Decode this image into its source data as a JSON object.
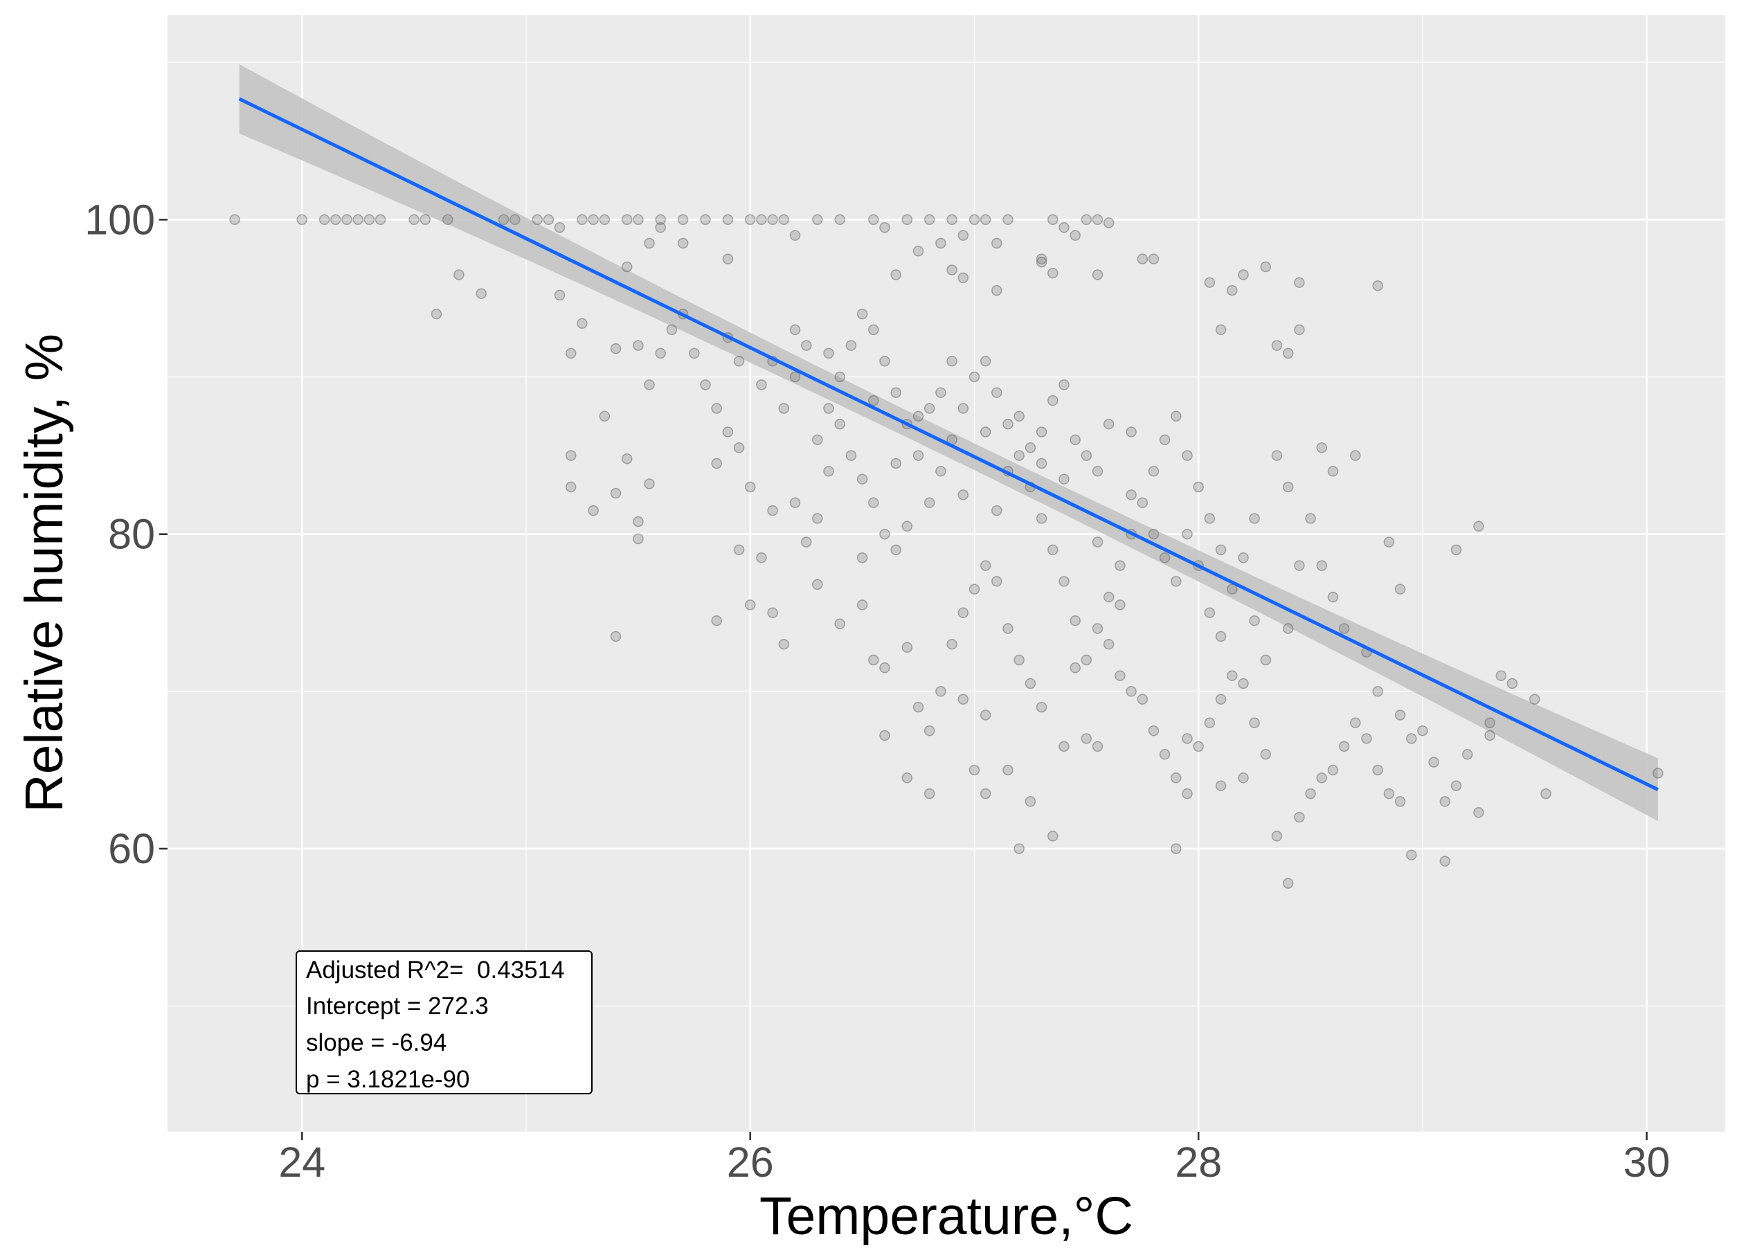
{
  "chart_data": {
    "type": "scatter",
    "title": "",
    "xlabel": "Temperature,°C",
    "ylabel": "Relative humidity, %",
    "xlim": [
      23.4,
      30.35
    ],
    "ylim": [
      42.0,
      113.0
    ],
    "x_ticks": [
      24,
      26,
      28,
      30
    ],
    "x_tick_labels": [
      "24",
      "26",
      "28",
      "30"
    ],
    "y_ticks": [
      60,
      80,
      100
    ],
    "y_tick_labels": [
      "60",
      "80",
      "100"
    ],
    "x_minor": [
      23,
      25,
      27,
      29
    ],
    "y_minor": [
      50,
      70,
      90,
      110
    ],
    "grid": true,
    "background": "#ebebeb",
    "point_color": "#7f7f7f",
    "regression": {
      "x_range": [
        23.72,
        30.05
      ],
      "intercept": 272.3,
      "slope": -6.94,
      "ci_half_width": [
        2.2,
        0.85,
        2.0
      ],
      "color": "#1565ff",
      "band_color": "#c4c4c4"
    },
    "annotation": {
      "lines": [
        "Adjusted R^2=  0.43514",
        "Intercept = 272.3",
        "slope = -6.94",
        "p = 3.1821e-90"
      ]
    },
    "points": [
      [
        23.7,
        100
      ],
      [
        24.0,
        100
      ],
      [
        24.1,
        100
      ],
      [
        24.15,
        100
      ],
      [
        24.2,
        100
      ],
      [
        24.25,
        100
      ],
      [
        24.3,
        100
      ],
      [
        24.35,
        100
      ],
      [
        24.5,
        100
      ],
      [
        24.55,
        100
      ],
      [
        24.65,
        100
      ],
      [
        24.9,
        100
      ],
      [
        24.95,
        100
      ],
      [
        25.05,
        100
      ],
      [
        25.1,
        100
      ],
      [
        25.25,
        100
      ],
      [
        25.3,
        100
      ],
      [
        25.35,
        100
      ],
      [
        25.45,
        100
      ],
      [
        25.5,
        100
      ],
      [
        25.6,
        100
      ],
      [
        25.7,
        100
      ],
      [
        25.8,
        100
      ],
      [
        25.9,
        100
      ],
      [
        26.0,
        100
      ],
      [
        26.05,
        100
      ],
      [
        26.1,
        100
      ],
      [
        26.15,
        100
      ],
      [
        26.3,
        100
      ],
      [
        26.4,
        100
      ],
      [
        26.55,
        100
      ],
      [
        26.7,
        100
      ],
      [
        26.8,
        100
      ],
      [
        26.9,
        100
      ],
      [
        27.0,
        100
      ],
      [
        27.05,
        100
      ],
      [
        27.15,
        100
      ],
      [
        27.35,
        100
      ],
      [
        27.5,
        100
      ],
      [
        27.55,
        100
      ],
      [
        27.6,
        99.8
      ],
      [
        27.4,
        99.5
      ],
      [
        27.3,
        97.5
      ],
      [
        27.1,
        98.5
      ],
      [
        26.95,
        99
      ],
      [
        26.85,
        98.5
      ],
      [
        26.75,
        98
      ],
      [
        27.55,
        96.5
      ],
      [
        26.6,
        99.5
      ],
      [
        26.2,
        99
      ],
      [
        25.9,
        97.5
      ],
      [
        25.7,
        98.5
      ],
      [
        25.6,
        99.5
      ],
      [
        25.55,
        98.5
      ],
      [
        25.45,
        97
      ],
      [
        25.15,
        99.5
      ],
      [
        24.7,
        96.5
      ],
      [
        24.8,
        95.3
      ],
      [
        24.6,
        94
      ],
      [
        25.15,
        95.2
      ],
      [
        25.25,
        93.4
      ],
      [
        25.2,
        91.5
      ],
      [
        25.4,
        91.8
      ],
      [
        25.35,
        87.5
      ],
      [
        25.2,
        85
      ],
      [
        25.2,
        83
      ],
      [
        25.45,
        84.8
      ],
      [
        25.4,
        82.6
      ],
      [
        25.55,
        83.2
      ],
      [
        25.3,
        81.5
      ],
      [
        25.5,
        80.8
      ],
      [
        25.5,
        79.7
      ],
      [
        25.4,
        73.5
      ],
      [
        25.5,
        92
      ],
      [
        25.55,
        89.5
      ],
      [
        25.6,
        91.5
      ],
      [
        25.65,
        93
      ],
      [
        25.7,
        94
      ],
      [
        25.75,
        91.5
      ],
      [
        25.8,
        89.5
      ],
      [
        25.85,
        88
      ],
      [
        25.9,
        86.5
      ],
      [
        25.95,
        85.5
      ],
      [
        25.85,
        84.5
      ],
      [
        26.0,
        83
      ],
      [
        26.1,
        81.5
      ],
      [
        26.05,
        78.5
      ],
      [
        25.95,
        79
      ],
      [
        26.0,
        75.5
      ],
      [
        26.1,
        75
      ],
      [
        25.85,
        74.5
      ],
      [
        26.15,
        73
      ],
      [
        26.2,
        82
      ],
      [
        26.3,
        81
      ],
      [
        26.35,
        84
      ],
      [
        26.3,
        86
      ],
      [
        26.4,
        87
      ],
      [
        26.45,
        85
      ],
      [
        26.5,
        83.5
      ],
      [
        26.55,
        82
      ],
      [
        26.6,
        80
      ],
      [
        26.65,
        79
      ],
      [
        26.7,
        80.5
      ],
      [
        26.3,
        76.8
      ],
      [
        26.4,
        74.3
      ],
      [
        26.5,
        75.5
      ],
      [
        26.55,
        72
      ],
      [
        26.6,
        71.5
      ],
      [
        26.7,
        72.8
      ],
      [
        26.75,
        69
      ],
      [
        26.8,
        67.5
      ],
      [
        26.6,
        67.2
      ],
      [
        26.7,
        64.5
      ],
      [
        26.85,
        70
      ],
      [
        26.9,
        73
      ],
      [
        26.95,
        75
      ],
      [
        27.0,
        76.5
      ],
      [
        27.05,
        78
      ],
      [
        27.1,
        77
      ],
      [
        27.15,
        74
      ],
      [
        27.2,
        72
      ],
      [
        27.25,
        70.5
      ],
      [
        27.3,
        69
      ],
      [
        27.05,
        68.5
      ],
      [
        27.0,
        65
      ],
      [
        27.05,
        63.5
      ],
      [
        27.25,
        63
      ],
      [
        27.2,
        60
      ],
      [
        27.35,
        60.8
      ],
      [
        27.4,
        66.5
      ],
      [
        27.5,
        67
      ],
      [
        27.55,
        66.5
      ],
      [
        27.6,
        73
      ],
      [
        27.65,
        71
      ],
      [
        27.7,
        70
      ],
      [
        27.75,
        69.5
      ],
      [
        27.8,
        67.5
      ],
      [
        27.85,
        66
      ],
      [
        27.9,
        64.5
      ],
      [
        27.95,
        63.5
      ],
      [
        27.95,
        67
      ],
      [
        28.0,
        66.5
      ],
      [
        28.05,
        68
      ],
      [
        28.1,
        69.5
      ],
      [
        28.15,
        71
      ],
      [
        28.2,
        70.5
      ],
      [
        28.25,
        68
      ],
      [
        28.3,
        66
      ],
      [
        27.9,
        60
      ],
      [
        28.35,
        60.8
      ],
      [
        28.4,
        57.8
      ],
      [
        28.45,
        62
      ],
      [
        28.5,
        63.5
      ],
      [
        28.55,
        64.5
      ],
      [
        28.6,
        65
      ],
      [
        28.65,
        66.5
      ],
      [
        28.7,
        68
      ],
      [
        28.75,
        67
      ],
      [
        28.8,
        65
      ],
      [
        28.85,
        63.5
      ],
      [
        28.9,
        63
      ],
      [
        28.95,
        67
      ],
      [
        29.0,
        67.5
      ],
      [
        29.05,
        65.5
      ],
      [
        29.1,
        63
      ],
      [
        29.15,
        64
      ],
      [
        29.2,
        66
      ],
      [
        29.25,
        62.3
      ],
      [
        29.1,
        59.2
      ],
      [
        28.95,
        59.6
      ],
      [
        29.3,
        67.2
      ],
      [
        29.4,
        70.5
      ],
      [
        29.5,
        69.5
      ],
      [
        29.55,
        63.5
      ],
      [
        30.05,
        64.8
      ],
      [
        29.25,
        80.5
      ],
      [
        29.15,
        79
      ],
      [
        28.9,
        76.5
      ],
      [
        28.85,
        79.5
      ],
      [
        28.7,
        85
      ],
      [
        28.6,
        84
      ],
      [
        28.55,
        85.5
      ],
      [
        28.45,
        78
      ],
      [
        28.4,
        74
      ],
      [
        28.3,
        72
      ],
      [
        28.25,
        74.5
      ],
      [
        28.15,
        76.5
      ],
      [
        28.1,
        79
      ],
      [
        28.05,
        81
      ],
      [
        28.0,
        83
      ],
      [
        27.95,
        85
      ],
      [
        27.9,
        87.5
      ],
      [
        27.85,
        86
      ],
      [
        27.8,
        84
      ],
      [
        27.75,
        82
      ],
      [
        27.7,
        80
      ],
      [
        27.65,
        78
      ],
      [
        27.6,
        76
      ],
      [
        27.55,
        74
      ],
      [
        27.5,
        72
      ],
      [
        27.45,
        74.5
      ],
      [
        27.4,
        77
      ],
      [
        27.35,
        79
      ],
      [
        27.3,
        81
      ],
      [
        27.25,
        83
      ],
      [
        27.2,
        85
      ],
      [
        27.15,
        87
      ],
      [
        27.1,
        89
      ],
      [
        27.05,
        91
      ],
      [
        27.0,
        90
      ],
      [
        26.95,
        88
      ],
      [
        26.9,
        86
      ],
      [
        26.85,
        84
      ],
      [
        26.8,
        82
      ],
      [
        26.75,
        85
      ],
      [
        26.7,
        87
      ],
      [
        26.65,
        89
      ],
      [
        26.6,
        91
      ],
      [
        26.55,
        93
      ],
      [
        26.5,
        94
      ],
      [
        26.45,
        92
      ],
      [
        26.4,
        90
      ],
      [
        26.35,
        88
      ],
      [
        26.25,
        92
      ],
      [
        26.2,
        90
      ],
      [
        26.15,
        88
      ],
      [
        26.1,
        91
      ],
      [
        26.05,
        89.5
      ],
      [
        25.95,
        91
      ],
      [
        25.9,
        92.5
      ],
      [
        26.85,
        89
      ],
      [
        26.9,
        91
      ],
      [
        27.2,
        87.5
      ],
      [
        27.3,
        86.5
      ],
      [
        27.35,
        88.5
      ],
      [
        27.4,
        89.5
      ],
      [
        27.45,
        86
      ],
      [
        27.5,
        85
      ],
      [
        27.55,
        84
      ],
      [
        27.4,
        83.5
      ],
      [
        27.3,
        84.5
      ],
      [
        27.25,
        85.5
      ],
      [
        27.6,
        87
      ],
      [
        27.7,
        86.5
      ],
      [
        27.8,
        80
      ],
      [
        27.85,
        78.5
      ],
      [
        27.9,
        77
      ],
      [
        27.95,
        80
      ],
      [
        28.0,
        78
      ],
      [
        28.05,
        75
      ],
      [
        28.1,
        73.5
      ],
      [
        28.2,
        78.5
      ],
      [
        28.25,
        81
      ],
      [
        28.35,
        85
      ],
      [
        28.4,
        83
      ],
      [
        28.5,
        81
      ],
      [
        28.55,
        78
      ],
      [
        28.6,
        76
      ],
      [
        28.65,
        74
      ],
      [
        28.75,
        72.5
      ],
      [
        28.8,
        70
      ],
      [
        28.9,
        68.5
      ],
      [
        28.35,
        92
      ],
      [
        28.4,
        91.5
      ],
      [
        28.45,
        93
      ],
      [
        28.45,
        96
      ],
      [
        28.3,
        97
      ],
      [
        28.2,
        96.5
      ],
      [
        28.15,
        95.5
      ],
      [
        28.05,
        96
      ],
      [
        28.1,
        93
      ],
      [
        27.8,
        97.5
      ],
      [
        27.75,
        97.5
      ],
      [
        27.1,
        95.5
      ],
      [
        26.9,
        96.8
      ],
      [
        26.95,
        96.3
      ],
      [
        27.3,
        97.3
      ],
      [
        27.35,
        96.6
      ],
      [
        27.45,
        99
      ],
      [
        26.65,
        96.5
      ],
      [
        28.8,
        95.8
      ],
      [
        29.3,
        68
      ],
      [
        29.35,
        71
      ],
      [
        28.1,
        64
      ],
      [
        28.2,
        64.5
      ],
      [
        27.65,
        75.5
      ],
      [
        27.15,
        65
      ],
      [
        26.95,
        69.5
      ],
      [
        26.8,
        63.5
      ],
      [
        27.45,
        71.5
      ],
      [
        27.55,
        79.5
      ],
      [
        27.7,
        82.5
      ],
      [
        27.1,
        81.5
      ],
      [
        26.95,
        82.5
      ],
      [
        26.5,
        78.5
      ],
      [
        26.25,
        79.5
      ],
      [
        26.65,
        84.5
      ],
      [
        26.75,
        87.5
      ],
      [
        27.05,
        86.5
      ],
      [
        27.15,
        84
      ],
      [
        26.8,
        88
      ],
      [
        26.55,
        88.5
      ],
      [
        26.35,
        91.5
      ],
      [
        26.2,
        93
      ]
    ]
  }
}
